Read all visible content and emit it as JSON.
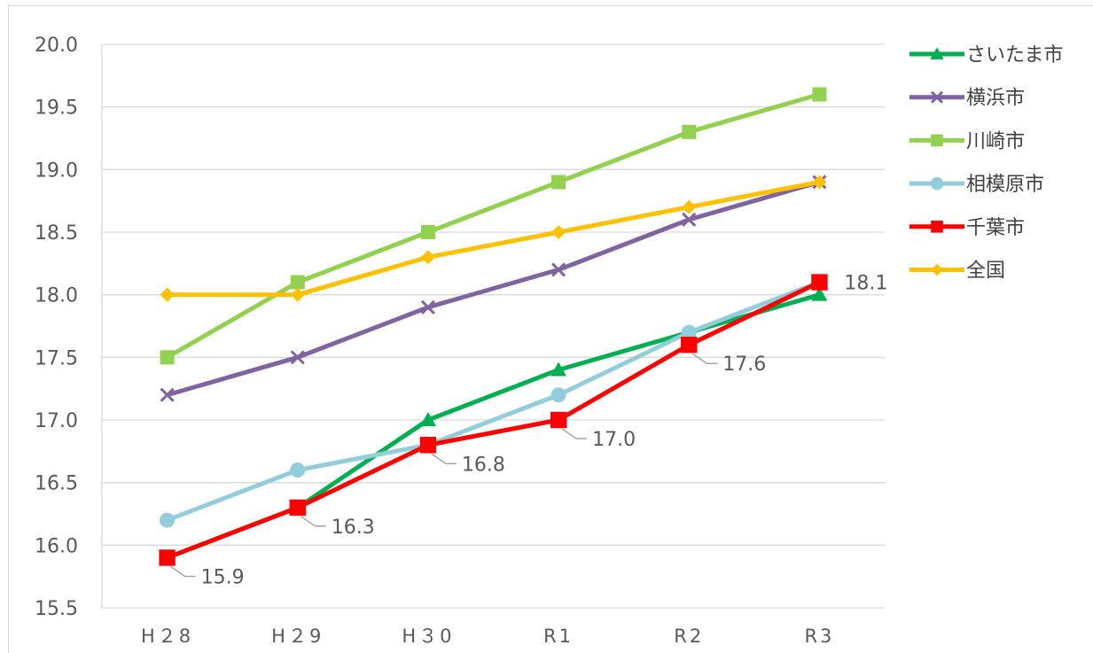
{
  "chart_data": {
    "type": "line",
    "title": "",
    "xlabel": "",
    "ylabel": "",
    "ylim": [
      15.5,
      20.0
    ],
    "yticks": [
      "20.0",
      "19.5",
      "19.0",
      "18.5",
      "18.0",
      "17.5",
      "17.0",
      "16.5",
      "16.0",
      "15.5"
    ],
    "categories": [
      "H28",
      "H29",
      "H30",
      "R1",
      "R2",
      "R3"
    ],
    "category_labels": [
      "H２8",
      "H２9",
      "H３0",
      "R1",
      "R2",
      "R3"
    ],
    "grid": true,
    "legend_position": "right",
    "series": [
      {
        "name": "さいたま市",
        "color": "#00b050",
        "marker": "triangle",
        "values": [
          15.9,
          16.3,
          17.0,
          17.4,
          17.7,
          18.0
        ]
      },
      {
        "name": "横浜市",
        "color": "#8064a2",
        "marker": "x",
        "values": [
          17.2,
          17.5,
          17.9,
          18.2,
          18.6,
          18.9
        ]
      },
      {
        "name": "川崎市",
        "color": "#92d050",
        "marker": "square",
        "values": [
          17.5,
          18.1,
          18.5,
          18.9,
          19.3,
          19.6
        ]
      },
      {
        "name": "相模原市",
        "color": "#92cddc",
        "marker": "circle",
        "values": [
          16.2,
          16.6,
          16.8,
          17.2,
          17.7,
          18.1
        ]
      },
      {
        "name": "千葉市",
        "color": "#ff0000",
        "marker": "square",
        "values": [
          15.9,
          16.3,
          16.8,
          17.0,
          17.6,
          18.1
        ],
        "data_labels": [
          "15.9",
          "16.3",
          "16.8",
          "17.0",
          "17.6",
          "18.1"
        ]
      },
      {
        "name": "全国",
        "color": "#ffc000",
        "marker": "diamond",
        "values": [
          18.0,
          18.0,
          18.3,
          18.5,
          18.7,
          18.9
        ]
      }
    ]
  }
}
